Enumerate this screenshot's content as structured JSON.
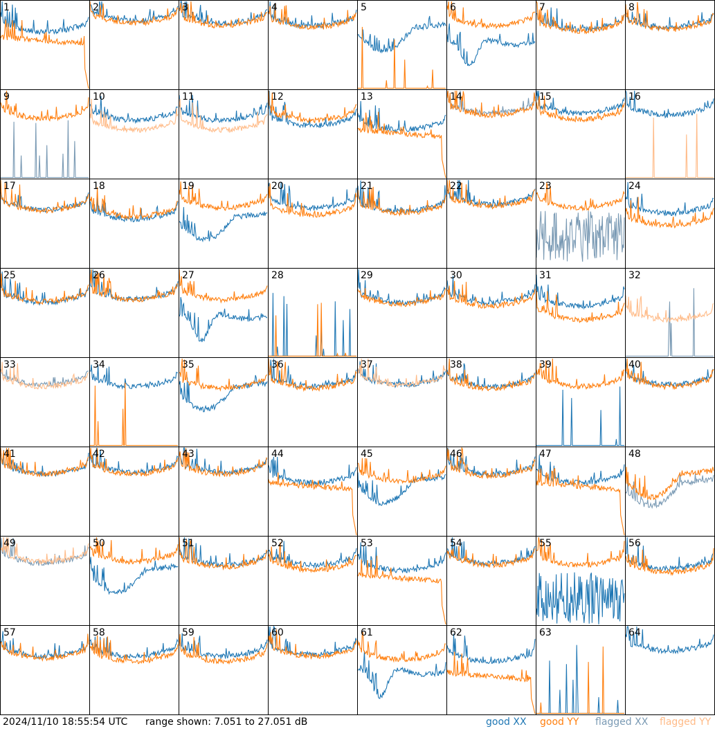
{
  "footer": {
    "timestamp": "2024/11/10 18:55:54 UTC",
    "range_text": "range shown: 7.051 to 27.051 dB"
  },
  "legend": [
    {
      "label": "good XX",
      "color": "#1f77b4"
    },
    {
      "label": "good YY",
      "color": "#ff7f0e"
    },
    {
      "label": "flagged XX",
      "color": "#7a9ab4"
    },
    {
      "label": "flagged YY",
      "color": "#ffbb88"
    }
  ],
  "colors": {
    "good_xx": "#1f77b4",
    "good_yy": "#ff7f0e",
    "flagged_xx": "#7a9ab4",
    "flagged_yy": "#ffbb88",
    "grid": "#000000"
  },
  "chart_data": {
    "type": "line",
    "grid_rows": 8,
    "grid_cols": 8,
    "ylim_db": [
      7.051,
      27.051
    ],
    "panels": [
      {
        "id": "1",
        "xx": {
          "shape": "bathtub",
          "level": 0.65,
          "flag": false
        },
        "yy": {
          "shape": "dropfall",
          "level": 0.54,
          "flag": false
        }
      },
      {
        "id": "2",
        "xx": {
          "shape": "bathtub",
          "level": 0.78,
          "flag": false
        },
        "yy": {
          "shape": "bathtub",
          "level": 0.75,
          "flag": false
        }
      },
      {
        "id": "3",
        "xx": {
          "shape": "bathtub",
          "level": 0.75,
          "flag": false
        },
        "yy": {
          "shape": "bathtub",
          "level": 0.72,
          "flag": false
        }
      },
      {
        "id": "4",
        "xx": {
          "shape": "bathtub",
          "level": 0.72,
          "flag": false
        },
        "yy": {
          "shape": "bathtub",
          "level": 0.7,
          "flag": false
        }
      },
      {
        "id": "5",
        "xx": {
          "shape": "dip",
          "level": 0.62,
          "flag": false
        },
        "yy": {
          "shape": "zero",
          "level": 0.0,
          "flag": false
        }
      },
      {
        "id": "6",
        "xx": {
          "shape": "deep",
          "level": 0.55,
          "flag": false
        },
        "yy": {
          "shape": "bathtub",
          "level": 0.72,
          "flag": false
        }
      },
      {
        "id": "7",
        "xx": {
          "shape": "bathtub",
          "level": 0.68,
          "flag": false
        },
        "yy": {
          "shape": "bathtub",
          "level": 0.66,
          "flag": false
        }
      },
      {
        "id": "8",
        "xx": {
          "shape": "bathtub",
          "level": 0.7,
          "flag": false
        },
        "yy": {
          "shape": "bathtub",
          "level": 0.68,
          "flag": false
        }
      },
      {
        "id": "9",
        "xx": {
          "shape": "zero",
          "level": 0.0,
          "flag": true
        },
        "yy": {
          "shape": "bathtub",
          "level": 0.68,
          "flag": false
        }
      },
      {
        "id": "10",
        "xx": {
          "shape": "bathtub",
          "level": 0.66,
          "flag": false
        },
        "yy": {
          "shape": "bathtub",
          "level": 0.55,
          "flag": true
        }
      },
      {
        "id": "11",
        "xx": {
          "shape": "bathtub",
          "level": 0.66,
          "flag": false
        },
        "yy": {
          "shape": "bathtub",
          "level": 0.55,
          "flag": true
        }
      },
      {
        "id": "12",
        "xx": {
          "shape": "bathtub",
          "level": 0.6,
          "flag": false
        },
        "yy": {
          "shape": "bathtub",
          "level": 0.66,
          "flag": false
        }
      },
      {
        "id": "13",
        "xx": {
          "shape": "bathtub",
          "level": 0.55,
          "flag": false
        },
        "yy": {
          "shape": "dropfall",
          "level": 0.5,
          "flag": false
        }
      },
      {
        "id": "14",
        "xx": {
          "shape": "bathtub",
          "level": 0.74,
          "flag": true
        },
        "yy": {
          "shape": "bathtub",
          "level": 0.72,
          "flag": false
        }
      },
      {
        "id": "15",
        "xx": {
          "shape": "bathtub",
          "level": 0.74,
          "flag": false
        },
        "yy": {
          "shape": "bathtub",
          "level": 0.67,
          "flag": false
        }
      },
      {
        "id": "16",
        "xx": {
          "shape": "bathtub",
          "level": 0.72,
          "flag": false
        },
        "yy": {
          "shape": "zero",
          "level": 0.0,
          "flag": true
        }
      },
      {
        "id": "17",
        "xx": {
          "shape": "bathtub",
          "level": 0.66,
          "flag": false
        },
        "yy": {
          "shape": "bathtub",
          "level": 0.65,
          "flag": false
        }
      },
      {
        "id": "18",
        "xx": {
          "shape": "bathtub",
          "level": 0.55,
          "flag": false
        },
        "yy": {
          "shape": "bathtub",
          "level": 0.58,
          "flag": false
        }
      },
      {
        "id": "19",
        "xx": {
          "shape": "dip",
          "level": 0.5,
          "flag": false
        },
        "yy": {
          "shape": "bathtub",
          "level": 0.68,
          "flag": false
        }
      },
      {
        "id": "20",
        "xx": {
          "shape": "bathtub",
          "level": 0.68,
          "flag": false
        },
        "yy": {
          "shape": "bathtub",
          "level": 0.6,
          "flag": false
        }
      },
      {
        "id": "21",
        "xx": {
          "shape": "bathtub",
          "level": 0.64,
          "flag": false
        },
        "yy": {
          "shape": "bathtub",
          "level": 0.62,
          "flag": false
        }
      },
      {
        "id": "22",
        "xx": {
          "shape": "bathtub",
          "level": 0.72,
          "flag": false
        },
        "yy": {
          "shape": "bathtub",
          "level": 0.7,
          "flag": false
        }
      },
      {
        "id": "23",
        "xx": {
          "shape": "noise",
          "level": 0.35,
          "flag": true
        },
        "yy": {
          "shape": "bathtub",
          "level": 0.68,
          "flag": false
        }
      },
      {
        "id": "24",
        "xx": {
          "shape": "bathtub",
          "level": 0.62,
          "flag": false
        },
        "yy": {
          "shape": "bathtub",
          "level": 0.48,
          "flag": false
        }
      },
      {
        "id": "25",
        "xx": {
          "shape": "bathtub",
          "level": 0.62,
          "flag": false
        },
        "yy": {
          "shape": "bathtub",
          "level": 0.63,
          "flag": false
        }
      },
      {
        "id": "26",
        "xx": {
          "shape": "bathtub",
          "level": 0.66,
          "flag": false
        },
        "yy": {
          "shape": "bathtub",
          "level": 0.65,
          "flag": false
        }
      },
      {
        "id": "27",
        "xx": {
          "shape": "deep",
          "level": 0.48,
          "flag": false
        },
        "yy": {
          "shape": "bathtub",
          "level": 0.65,
          "flag": false
        }
      },
      {
        "id": "28",
        "xx": {
          "shape": "zero",
          "level": 0.0,
          "flag": false
        },
        "yy": {
          "shape": "zero",
          "level": 0.0,
          "flag": false
        }
      },
      {
        "id": "29",
        "xx": {
          "shape": "bathtub",
          "level": 0.62,
          "flag": false
        },
        "yy": {
          "shape": "bathtub",
          "level": 0.6,
          "flag": false
        }
      },
      {
        "id": "30",
        "xx": {
          "shape": "bathtub",
          "level": 0.62,
          "flag": false
        },
        "yy": {
          "shape": "bathtub",
          "level": 0.58,
          "flag": false
        }
      },
      {
        "id": "31",
        "xx": {
          "shape": "bathtub",
          "level": 0.58,
          "flag": false
        },
        "yy": {
          "shape": "bathtub",
          "level": 0.42,
          "flag": false
        }
      },
      {
        "id": "32",
        "xx": {
          "shape": "zero",
          "level": 0.0,
          "flag": true
        },
        "yy": {
          "shape": "bathtub",
          "level": 0.42,
          "flag": true
        }
      },
      {
        "id": "33",
        "xx": {
          "shape": "bathtub",
          "level": 0.7,
          "flag": true
        },
        "yy": {
          "shape": "bathtub",
          "level": 0.68,
          "flag": true
        }
      },
      {
        "id": "34",
        "xx": {
          "shape": "bathtub",
          "level": 0.68,
          "flag": false
        },
        "yy": {
          "shape": "zero",
          "level": 0.0,
          "flag": false
        }
      },
      {
        "id": "35",
        "xx": {
          "shape": "dip",
          "level": 0.6,
          "flag": false
        },
        "yy": {
          "shape": "bathtub",
          "level": 0.66,
          "flag": false
        }
      },
      {
        "id": "36",
        "xx": {
          "shape": "bathtub",
          "level": 0.68,
          "flag": false
        },
        "yy": {
          "shape": "bathtub",
          "level": 0.66,
          "flag": false
        }
      },
      {
        "id": "37",
        "xx": {
          "shape": "bathtub",
          "level": 0.7,
          "flag": false
        },
        "yy": {
          "shape": "bathtub",
          "level": 0.7,
          "flag": true
        }
      },
      {
        "id": "38",
        "xx": {
          "shape": "bathtub",
          "level": 0.68,
          "flag": false
        },
        "yy": {
          "shape": "bathtub",
          "level": 0.66,
          "flag": false
        }
      },
      {
        "id": "39",
        "xx": {
          "shape": "zero",
          "level": 0.0,
          "flag": false
        },
        "yy": {
          "shape": "bathtub",
          "level": 0.68,
          "flag": false
        }
      },
      {
        "id": "40",
        "xx": {
          "shape": "bathtub",
          "level": 0.7,
          "flag": false
        },
        "yy": {
          "shape": "bathtub",
          "level": 0.68,
          "flag": false
        }
      },
      {
        "id": "41",
        "xx": {
          "shape": "bathtub",
          "level": 0.7,
          "flag": false
        },
        "yy": {
          "shape": "bathtub",
          "level": 0.7,
          "flag": false
        }
      },
      {
        "id": "42",
        "xx": {
          "shape": "bathtub",
          "level": 0.72,
          "flag": false
        },
        "yy": {
          "shape": "bathtub",
          "level": 0.7,
          "flag": false
        }
      },
      {
        "id": "43",
        "xx": {
          "shape": "bathtub",
          "level": 0.72,
          "flag": false
        },
        "yy": {
          "shape": "bathtub",
          "level": 0.7,
          "flag": false
        }
      },
      {
        "id": "44",
        "xx": {
          "shape": "bathtub",
          "level": 0.6,
          "flag": false
        },
        "yy": {
          "shape": "dropfall",
          "level": 0.55,
          "flag": false
        }
      },
      {
        "id": "45",
        "xx": {
          "shape": "dip",
          "level": 0.55,
          "flag": false
        },
        "yy": {
          "shape": "bathtub",
          "level": 0.62,
          "flag": false
        }
      },
      {
        "id": "46",
        "xx": {
          "shape": "bathtub",
          "level": 0.7,
          "flag": false
        },
        "yy": {
          "shape": "bathtub",
          "level": 0.68,
          "flag": false
        }
      },
      {
        "id": "47",
        "xx": {
          "shape": "bathtub",
          "level": 0.6,
          "flag": false
        },
        "yy": {
          "shape": "dropfall",
          "level": 0.55,
          "flag": false
        }
      },
      {
        "id": "48",
        "xx": {
          "shape": "dip",
          "level": 0.52,
          "flag": true
        },
        "yy": {
          "shape": "dip",
          "level": 0.62,
          "flag": false
        }
      },
      {
        "id": "49",
        "xx": {
          "shape": "bathtub",
          "level": 0.7,
          "flag": true
        },
        "yy": {
          "shape": "bathtub",
          "level": 0.72,
          "flag": true
        }
      },
      {
        "id": "50",
        "xx": {
          "shape": "dip",
          "level": 0.55,
          "flag": false
        },
        "yy": {
          "shape": "bathtub",
          "level": 0.72,
          "flag": false
        }
      },
      {
        "id": "51",
        "xx": {
          "shape": "bathtub",
          "level": 0.68,
          "flag": false
        },
        "yy": {
          "shape": "bathtub",
          "level": 0.66,
          "flag": false
        }
      },
      {
        "id": "52",
        "xx": {
          "shape": "bathtub",
          "level": 0.68,
          "flag": false
        },
        "yy": {
          "shape": "bathtub",
          "level": 0.62,
          "flag": false
        }
      },
      {
        "id": "53",
        "xx": {
          "shape": "bathtub",
          "level": 0.62,
          "flag": false
        },
        "yy": {
          "shape": "dropfall",
          "level": 0.52,
          "flag": false
        }
      },
      {
        "id": "54",
        "xx": {
          "shape": "bathtub",
          "level": 0.7,
          "flag": false
        },
        "yy": {
          "shape": "bathtub",
          "level": 0.68,
          "flag": false
        }
      },
      {
        "id": "55",
        "xx": {
          "shape": "noise",
          "level": 0.3,
          "flag": false
        },
        "yy": {
          "shape": "bathtub",
          "level": 0.68,
          "flag": false
        }
      },
      {
        "id": "56",
        "xx": {
          "shape": "bathtub",
          "level": 0.64,
          "flag": false
        },
        "yy": {
          "shape": "bathtub",
          "level": 0.6,
          "flag": false
        }
      },
      {
        "id": "57",
        "xx": {
          "shape": "bathtub",
          "level": 0.66,
          "flag": false
        },
        "yy": {
          "shape": "bathtub",
          "level": 0.64,
          "flag": false
        }
      },
      {
        "id": "58",
        "xx": {
          "shape": "bathtub",
          "level": 0.66,
          "flag": false
        },
        "yy": {
          "shape": "bathtub",
          "level": 0.6,
          "flag": false
        }
      },
      {
        "id": "59",
        "xx": {
          "shape": "bathtub",
          "level": 0.66,
          "flag": false
        },
        "yy": {
          "shape": "bathtub",
          "level": 0.6,
          "flag": false
        }
      },
      {
        "id": "60",
        "xx": {
          "shape": "bathtub",
          "level": 0.68,
          "flag": false
        },
        "yy": {
          "shape": "bathtub",
          "level": 0.66,
          "flag": false
        }
      },
      {
        "id": "61",
        "xx": {
          "shape": "deep",
          "level": 0.5,
          "flag": false
        },
        "yy": {
          "shape": "bathtub",
          "level": 0.62,
          "flag": false
        }
      },
      {
        "id": "62",
        "xx": {
          "shape": "bathtub",
          "level": 0.6,
          "flag": false
        },
        "yy": {
          "shape": "dropfall",
          "level": 0.42,
          "flag": false
        }
      },
      {
        "id": "63",
        "xx": {
          "shape": "zero",
          "level": 0.0,
          "flag": false
        },
        "yy": {
          "shape": "zero",
          "level": 0.0,
          "flag": false
        }
      },
      {
        "id": "64",
        "xx": {
          "shape": "bathtub",
          "level": 0.72,
          "flag": false
        },
        "yy": {
          "shape": "none",
          "level": 0.0,
          "flag": false
        }
      }
    ]
  }
}
